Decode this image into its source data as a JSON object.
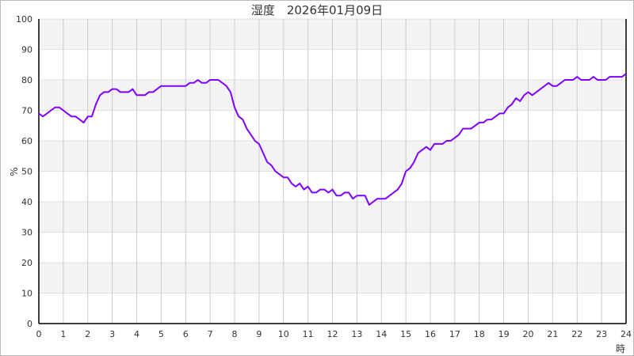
{
  "chart_data": {
    "type": "line",
    "title": "湿度　2026年01月09日",
    "xlabel": "時",
    "ylabel": "%",
    "xlim": [
      0,
      24
    ],
    "ylim": [
      0,
      100
    ],
    "xticks": [
      0,
      1,
      2,
      3,
      4,
      5,
      6,
      7,
      8,
      9,
      10,
      11,
      12,
      13,
      14,
      15,
      16,
      17,
      18,
      19,
      20,
      21,
      22,
      23,
      24
    ],
    "yticks": [
      0,
      10,
      20,
      30,
      40,
      50,
      60,
      70,
      80,
      90,
      100
    ],
    "grid": true,
    "colors": {
      "line": "#8000ff",
      "band": "#f3f3f3",
      "grid": "#cccccc"
    },
    "series": [
      {
        "x_step_minutes": 10,
        "values": [
          69,
          68,
          69,
          70,
          71,
          71,
          70,
          69,
          68,
          68,
          67,
          66,
          68,
          68,
          72,
          75,
          76,
          76,
          77,
          77,
          76,
          76,
          76,
          77,
          75,
          75,
          75,
          76,
          76,
          77,
          78,
          78,
          78,
          78,
          78,
          78,
          78,
          79,
          79,
          80,
          79,
          79,
          80,
          80,
          80,
          79,
          78,
          76,
          71,
          68,
          67,
          64,
          62,
          60,
          59,
          56,
          53,
          52,
          50,
          49,
          48,
          48,
          46,
          45,
          46,
          44,
          45,
          43,
          43,
          44,
          44,
          43,
          44,
          42,
          42,
          43,
          43,
          41,
          42,
          42,
          42,
          39,
          40,
          41,
          41,
          41,
          42,
          43,
          44,
          46,
          50,
          51,
          53,
          56,
          57,
          58,
          57,
          59,
          59,
          59,
          60,
          60,
          61,
          62,
          64,
          64,
          64,
          65,
          66,
          66,
          67,
          67,
          68,
          69,
          69,
          71,
          72,
          74,
          73,
          75,
          76,
          75,
          76,
          77,
          78,
          79,
          78,
          78,
          79,
          80,
          80,
          80,
          81,
          80,
          80,
          80,
          81,
          80,
          80,
          80,
          81,
          81,
          81,
          81,
          82
        ]
      }
    ]
  }
}
